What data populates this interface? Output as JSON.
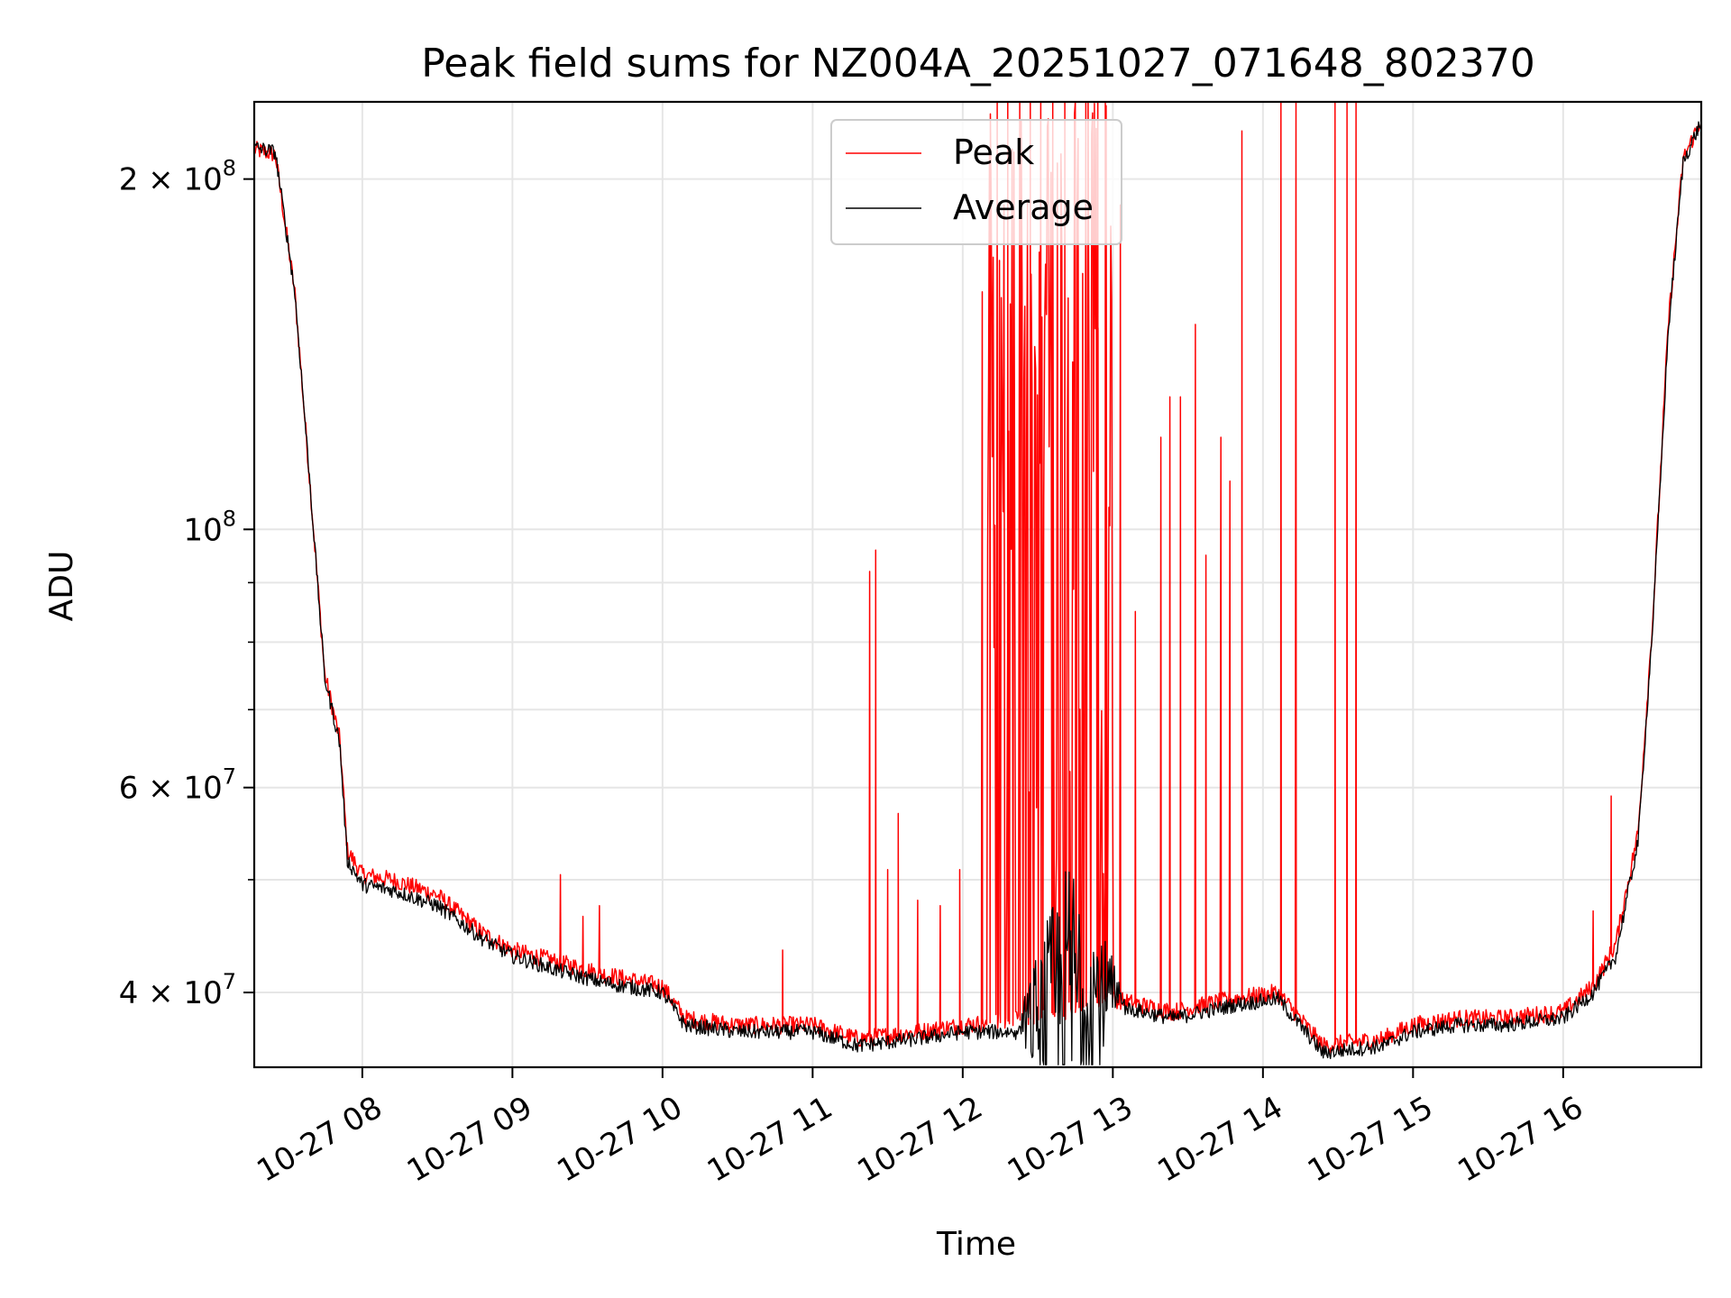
{
  "chart_data": {
    "type": "line",
    "title": "Peak field sums for NZ004A_20251027_071648_802370",
    "xlabel": "Time",
    "ylabel": "ADU",
    "yscale": "log",
    "ylim": [
      34500000,
      233000000
    ],
    "xlim_hours": [
      7.28,
      16.92
    ],
    "grid": true,
    "legend_position": "top-center",
    "x_ticks": [
      {
        "hour": 8,
        "label": "10-27 08"
      },
      {
        "hour": 9,
        "label": "10-27 09"
      },
      {
        "hour": 10,
        "label": "10-27 10"
      },
      {
        "hour": 11,
        "label": "10-27 11"
      },
      {
        "hour": 12,
        "label": "10-27 12"
      },
      {
        "hour": 13,
        "label": "10-27 13"
      },
      {
        "hour": 14,
        "label": "10-27 14"
      },
      {
        "hour": 15,
        "label": "10-27 15"
      },
      {
        "hour": 16,
        "label": "10-27 16"
      }
    ],
    "y_ticks": [
      {
        "value": 40000000,
        "mant": "4",
        "exp": "7"
      },
      {
        "value": 60000000,
        "mant": "6",
        "exp": "7"
      },
      {
        "value": 100000000,
        "mant": "",
        "exp": "8"
      },
      {
        "value": 200000000,
        "mant": "2",
        "exp": "8"
      }
    ],
    "y_minor": [
      50000000,
      70000000,
      80000000,
      90000000
    ],
    "series": [
      {
        "name": "Peak",
        "color": "#ff0000",
        "baseline": [
          [
            7.28,
            212000000
          ],
          [
            7.42,
            210000000
          ],
          [
            7.55,
            160000000
          ],
          [
            7.65,
            110000000
          ],
          [
            7.75,
            75000000
          ],
          [
            7.85,
            66000000
          ],
          [
            7.9,
            53000000
          ],
          [
            8.0,
            50500000
          ],
          [
            8.2,
            50000000
          ],
          [
            8.5,
            48500000
          ],
          [
            8.8,
            45000000
          ],
          [
            9.0,
            43500000
          ],
          [
            9.3,
            42500000
          ],
          [
            9.6,
            41500000
          ],
          [
            10.0,
            40500000
          ],
          [
            10.15,
            38000000
          ],
          [
            10.5,
            37500000
          ],
          [
            11.0,
            37500000
          ],
          [
            11.3,
            36500000
          ],
          [
            11.7,
            37000000
          ],
          [
            12.0,
            37500000
          ],
          [
            12.5,
            38000000
          ],
          [
            13.0,
            39500000
          ],
          [
            13.4,
            38500000
          ],
          [
            13.8,
            39500000
          ],
          [
            14.1,
            40000000
          ],
          [
            14.4,
            36000000
          ],
          [
            14.8,
            36500000
          ],
          [
            15.0,
            37500000
          ],
          [
            15.3,
            38000000
          ],
          [
            15.6,
            38000000
          ],
          [
            16.0,
            38500000
          ],
          [
            16.2,
            40500000
          ],
          [
            16.35,
            44000000
          ],
          [
            16.5,
            55000000
          ],
          [
            16.6,
            85000000
          ],
          [
            16.7,
            150000000
          ],
          [
            16.8,
            208000000
          ],
          [
            16.92,
            225000000
          ]
        ],
        "spikes": [
          [
            9.32,
            50500000
          ],
          [
            9.47,
            46500000
          ],
          [
            9.58,
            47500000
          ],
          [
            10.8,
            43500000
          ],
          [
            11.38,
            92000000
          ],
          [
            11.42,
            96000000
          ],
          [
            11.5,
            51000000
          ],
          [
            11.57,
            57000000
          ],
          [
            11.7,
            48000000
          ],
          [
            11.85,
            47500000
          ],
          [
            11.98,
            51000000
          ],
          [
            12.13,
            160000000
          ],
          [
            12.18,
            200000000
          ],
          [
            12.23,
            233000000
          ],
          [
            12.3,
            233000000
          ],
          [
            12.38,
            233000000
          ],
          [
            12.45,
            233000000
          ],
          [
            12.52,
            233000000
          ],
          [
            12.6,
            233000000
          ],
          [
            12.68,
            233000000
          ],
          [
            12.75,
            233000000
          ],
          [
            12.82,
            233000000
          ],
          [
            12.9,
            233000000
          ],
          [
            12.95,
            233000000
          ],
          [
            13.05,
            190000000
          ],
          [
            13.15,
            85000000
          ],
          [
            13.32,
            120000000
          ],
          [
            13.38,
            130000000
          ],
          [
            13.45,
            130000000
          ],
          [
            13.55,
            150000000
          ],
          [
            13.62,
            95000000
          ],
          [
            13.72,
            120000000
          ],
          [
            13.78,
            110000000
          ],
          [
            13.86,
            220000000
          ],
          [
            14.12,
            233000000
          ],
          [
            14.22,
            233000000
          ],
          [
            14.48,
            233000000
          ],
          [
            14.56,
            233000000
          ],
          [
            14.62,
            233000000
          ],
          [
            16.2,
            47000000
          ],
          [
            16.32,
            59000000
          ]
        ]
      },
      {
        "name": "Average",
        "color": "#000000",
        "baseline": [
          [
            7.28,
            213000000
          ],
          [
            7.42,
            211000000
          ],
          [
            7.55,
            160000000
          ],
          [
            7.65,
            110000000
          ],
          [
            7.75,
            74500000
          ],
          [
            7.85,
            65500000
          ],
          [
            7.9,
            52000000
          ],
          [
            8.0,
            49500000
          ],
          [
            8.2,
            49000000
          ],
          [
            8.5,
            47500000
          ],
          [
            8.8,
            44500000
          ],
          [
            9.0,
            43000000
          ],
          [
            9.3,
            41800000
          ],
          [
            9.6,
            40800000
          ],
          [
            10.0,
            40000000
          ],
          [
            10.15,
            37500000
          ],
          [
            10.5,
            37000000
          ],
          [
            11.0,
            37000000
          ],
          [
            11.3,
            36000000
          ],
          [
            11.7,
            36500000
          ],
          [
            12.0,
            37000000
          ],
          [
            12.5,
            37000000
          ],
          [
            13.0,
            39000000
          ],
          [
            13.4,
            38000000
          ],
          [
            13.8,
            39000000
          ],
          [
            14.1,
            39500000
          ],
          [
            14.4,
            35500000
          ],
          [
            14.8,
            36000000
          ],
          [
            15.0,
            37000000
          ],
          [
            15.3,
            37500000
          ],
          [
            15.6,
            37500000
          ],
          [
            16.0,
            38000000
          ],
          [
            16.2,
            40000000
          ],
          [
            16.35,
            43000000
          ],
          [
            16.5,
            54000000
          ],
          [
            16.6,
            84000000
          ],
          [
            16.7,
            148000000
          ],
          [
            16.8,
            207000000
          ],
          [
            16.92,
            224000000
          ]
        ],
        "noisy_range": [
          12.35,
          13.1
        ],
        "noisy_peak": 50000000
      }
    ]
  }
}
